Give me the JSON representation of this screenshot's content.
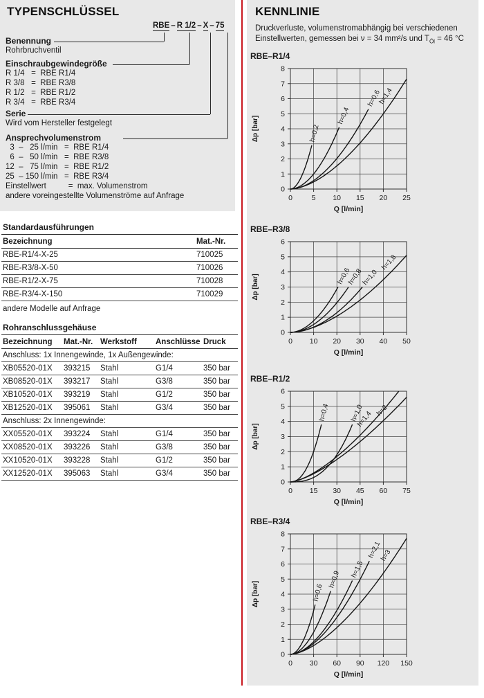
{
  "left": {
    "title": "TYPENSCHLÜSSEL",
    "code": {
      "segments": [
        "RBE",
        "R 1/2",
        "X",
        "75"
      ],
      "separator": "–"
    },
    "sections": [
      {
        "label": "Benennung",
        "lines": [
          "Rohrbruchventil"
        ]
      },
      {
        "label": "Einschraubgewindegröße",
        "lines": [
          "R 1/4   =  RBE R1/4",
          "R 3/8   =  RBE R3/8",
          "R 1/2   =  RBE R1/2",
          "R 3/4   =  RBE R3/4"
        ]
      },
      {
        "label": "Serie",
        "lines": [
          "Wird vom Hersteller festgelegt"
        ]
      },
      {
        "label": "Ansprechvolumenstrom",
        "lines": [
          "  3  –   25 l/min   =  RBE R1/4",
          "  6  –   50 l/min   =  RBE R3/8",
          "12  –   75 l/min   =  RBE R1/2",
          "25  – 150 l/min   =  RBE R3/4",
          "Einstellwert          =  max. Volumenstrom",
          "andere voreingestellte Volumenströme auf Anfrage"
        ]
      }
    ],
    "standard_table": {
      "title": "Standardausführungen",
      "headers": [
        "Bezeichnung",
        "Mat.-Nr."
      ],
      "rows": [
        [
          "RBE-R1/4-X-25",
          "710025"
        ],
        [
          "RBE-R3/8-X-50",
          "710026"
        ],
        [
          "RBE-R1/2-X-75",
          "710028"
        ],
        [
          "RBE-R3/4-X-150",
          "710029"
        ]
      ],
      "footer": "andere Modelle auf Anfrage"
    },
    "housing_table": {
      "title": "Rohranschlussgehäuse",
      "headers": [
        "Bezeichnung",
        "Mat.-Nr.",
        "Werkstoff",
        "Anschlüsse",
        "Druck"
      ],
      "groups": [
        {
          "label": "Anschluss: 1x Innengewinde, 1x Außengewinde:",
          "rows": [
            [
              "XB05520-01X",
              "393215",
              "Stahl",
              "G1/4",
              "350 bar"
            ],
            [
              "XB08520-01X",
              "393217",
              "Stahl",
              "G3/8",
              "350 bar"
            ],
            [
              "XB10520-01X",
              "393219",
              "Stahl",
              "G1/2",
              "350 bar"
            ],
            [
              "XB12520-01X",
              "395061",
              "Stahl",
              "G3/4",
              "350 bar"
            ]
          ]
        },
        {
          "label": "Anschluss: 2x Innengewinde:",
          "rows": [
            [
              "XX05520-01X",
              "393224",
              "Stahl",
              "G1/4",
              "350 bar"
            ],
            [
              "XX08520-01X",
              "393226",
              "Stahl",
              "G3/8",
              "350 bar"
            ],
            [
              "XX10520-01X",
              "393228",
              "Stahl",
              "G1/2",
              "350 bar"
            ],
            [
              "XX12520-01X",
              "395063",
              "Stahl",
              "G3/4",
              "350 bar"
            ]
          ]
        }
      ]
    }
  },
  "right": {
    "title": "KENNLINIE",
    "desc_line1": "Druckverluste, volumenstromabhängig bei verschiedenen",
    "desc_line2_pre": "Einstellwerten, gemessen bei ν = 34 mm²/s und T",
    "desc_line2_sub": "Öl",
    "desc_line2_post": " = 46 °C"
  },
  "chart_data": [
    {
      "type": "line",
      "title": "RBE–R1/4",
      "xlabel": "Q [l/min]",
      "ylabel": "Δp [bar]",
      "xlim": [
        0,
        25
      ],
      "ylim": [
        0,
        8
      ],
      "xticks": [
        0,
        5,
        10,
        15,
        20,
        25
      ],
      "yticks": [
        0,
        1,
        2,
        3,
        4,
        5,
        6,
        7,
        8
      ],
      "grid": true,
      "series": [
        {
          "name": "h=0,2",
          "end": [
            4.6,
            2.9
          ],
          "exp": 1.9,
          "label_style": "tip"
        },
        {
          "name": "h=0,4",
          "end": [
            10.5,
            4.1
          ],
          "exp": 1.9,
          "label_style": "tip"
        },
        {
          "name": "h=0,6",
          "end": [
            16.8,
            5.3
          ],
          "exp": 1.85,
          "label_style": "tip"
        },
        {
          "name": "h=1,4",
          "end": [
            25,
            7.3
          ],
          "exp": 1.7,
          "label_style": "along",
          "label_frac": 0.88
        }
      ]
    },
    {
      "type": "line",
      "title": "RBE–R3/8",
      "xlabel": "Q [l/min]",
      "ylabel": "Δp [bar]",
      "xlim": [
        0,
        50
      ],
      "ylim": [
        0,
        6
      ],
      "xticks": [
        0,
        10,
        20,
        30,
        40,
        50
      ],
      "yticks": [
        0,
        1,
        2,
        3,
        4,
        5,
        6
      ],
      "grid": true,
      "series": [
        {
          "name": "h=0,6",
          "end": [
            20.5,
            3.0
          ],
          "exp": 1.9,
          "label_style": "tip"
        },
        {
          "name": "h=0,8",
          "end": [
            25,
            3.0
          ],
          "exp": 1.9,
          "label_style": "tip"
        },
        {
          "name": "h=1,0",
          "end": [
            31,
            3.0
          ],
          "exp": 1.9,
          "label_style": "tip"
        },
        {
          "name": "h=1,8",
          "end": [
            50,
            5.1
          ],
          "exp": 1.7,
          "label_style": "along",
          "label_frac": 0.9
        }
      ]
    },
    {
      "type": "line",
      "title": "RBE–R1/2",
      "xlabel": "Q [l/min]",
      "ylabel": "Δp [bar]",
      "xlim": [
        0,
        75
      ],
      "ylim": [
        0,
        6
      ],
      "xticks": [
        0,
        15,
        30,
        45,
        60,
        75
      ],
      "yticks": [
        0,
        1,
        2,
        3,
        4,
        5,
        6
      ],
      "grid": true,
      "series": [
        {
          "name": "h=0,4",
          "end": [
            20,
            3.8
          ],
          "exp": 2.2,
          "label_style": "tip"
        },
        {
          "name": "h=1,0",
          "end": [
            40,
            3.8
          ],
          "exp": 2.6,
          "label_style": "tip"
        },
        {
          "name": "h=1,4",
          "end": [
            70,
            6.0
          ],
          "exp": 1.5,
          "label_style": "along",
          "label_frac": 0.74
        },
        {
          "name": "h=2",
          "end": [
            75,
            5.6
          ],
          "exp": 1.45,
          "label_style": "along",
          "label_frac": 0.84
        }
      ]
    },
    {
      "type": "line",
      "title": "RBE–R3/4",
      "xlabel": "Q [l/min]",
      "ylabel": "Δp [bar]",
      "xlim": [
        0,
        150
      ],
      "ylim": [
        0,
        8
      ],
      "xticks": [
        0,
        30,
        60,
        90,
        120,
        150
      ],
      "yticks": [
        0,
        1,
        2,
        3,
        4,
        5,
        6,
        7,
        8
      ],
      "grid": true,
      "series": [
        {
          "name": "h=0,6",
          "end": [
            32,
            3.3
          ],
          "exp": 1.95,
          "label_style": "tip"
        },
        {
          "name": "h=0,9",
          "end": [
            52,
            4.2
          ],
          "exp": 1.9,
          "label_style": "tip"
        },
        {
          "name": "h=1,5",
          "end": [
            80,
            4.9
          ],
          "exp": 1.8,
          "label_style": "tip"
        },
        {
          "name": "h=2,1",
          "end": [
            102,
            6.2
          ],
          "exp": 1.75,
          "label_style": "tip"
        },
        {
          "name": "h=3",
          "end": [
            150,
            7.7
          ],
          "exp": 1.6,
          "label_style": "along",
          "label_frac": 0.88
        }
      ]
    }
  ],
  "colors": {
    "panel_gray": "#e8e8e8",
    "divider_red": "#c8161d",
    "text": "#1a1a1a",
    "grid_line": "#4a4a4a",
    "curve": "#161616"
  }
}
